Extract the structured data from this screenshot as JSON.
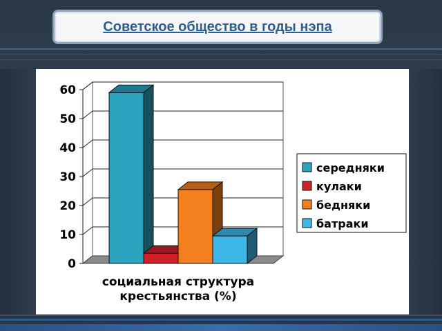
{
  "slide": {
    "title": "Советское общество в годы нэпа"
  },
  "chart_data": {
    "type": "bar",
    "three_d": true,
    "categories": [
      "социальная структура крестьянства (%)"
    ],
    "xlabel_lines": [
      "социальная структура",
      "крестьянства (%)"
    ],
    "ylabel": "",
    "ylim": [
      0,
      60
    ],
    "yticks": [
      0,
      10,
      20,
      30,
      40,
      50,
      60
    ],
    "grid": true,
    "legend_placement": "right",
    "series": [
      {
        "name": "середняки",
        "values": [
          59
        ],
        "color": "#2aa3be"
      },
      {
        "name": "кулаки",
        "values": [
          3.5
        ],
        "color": "#d0202a"
      },
      {
        "name": "бедняки",
        "values": [
          25.5
        ],
        "color": "#f47f1f"
      },
      {
        "name": "батраки",
        "values": [
          9.5
        ],
        "color": "#3db6e8"
      }
    ]
  }
}
